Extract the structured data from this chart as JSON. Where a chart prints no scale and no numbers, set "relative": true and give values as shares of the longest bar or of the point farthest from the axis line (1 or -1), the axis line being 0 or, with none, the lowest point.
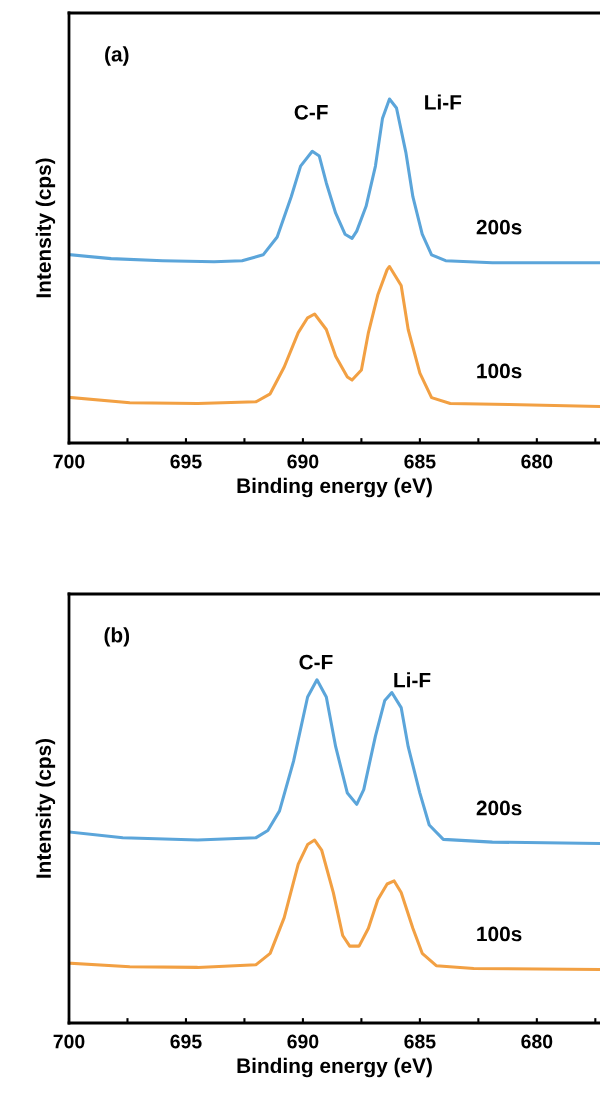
{
  "chart_data": [
    {
      "type": "line",
      "relative": true,
      "xlabel": "Binding energy (eV)",
      "ylabel": "Intensity (cps)",
      "xlim": [
        700,
        677.3
      ],
      "xticks": [
        700,
        {
          "value": 697.5,
          "label": null
        },
        695,
        {
          "value": 692.5,
          "label": null
        },
        690,
        {
          "value": 687.5,
          "label": null
        },
        685,
        {
          "value": 682.5,
          "label": null
        },
        680,
        {
          "value": 677.5,
          "label": null
        }
      ],
      "tick_labels": "x",
      "grid": false,
      "legend": false,
      "marker": "none",
      "line_style": "solid",
      "annotations": [
        "(a)",
        "C-F",
        "Li-F"
      ],
      "series": [
        {
          "name": "200s",
          "color": "#5ba5da",
          "x": [
            699.9,
            698.2,
            696.0,
            693.8,
            692.6,
            691.7,
            691.1,
            690.5,
            690.1,
            689.6,
            689.3,
            689.0,
            688.6,
            688.2,
            687.9,
            687.7,
            687.3,
            686.9,
            686.6,
            686.3,
            686.0,
            685.6,
            685.3,
            684.9,
            684.5,
            683.9,
            681.9,
            679.7,
            677.3
          ],
          "values": [
            0.547,
            0.536,
            0.53,
            0.527,
            0.53,
            0.547,
            0.599,
            0.716,
            0.805,
            0.848,
            0.834,
            0.756,
            0.668,
            0.607,
            0.595,
            0.616,
            0.688,
            0.805,
            0.943,
            1.0,
            0.974,
            0.845,
            0.716,
            0.607,
            0.547,
            0.53,
            0.524,
            0.524,
            0.524
          ]
        },
        {
          "name": "100s",
          "color": "#f2a043",
          "x": [
            699.9,
            697.4,
            694.5,
            692.0,
            691.4,
            690.8,
            690.2,
            689.8,
            689.5,
            689.0,
            688.6,
            688.1,
            687.9,
            687.5,
            687.2,
            686.8,
            686.4,
            686.3,
            685.8,
            685.5,
            685.0,
            684.5,
            683.7,
            681.2,
            677.3
          ],
          "values": [
            0.132,
            0.117,
            0.115,
            0.12,
            0.143,
            0.221,
            0.321,
            0.364,
            0.375,
            0.33,
            0.252,
            0.192,
            0.183,
            0.212,
            0.321,
            0.43,
            0.504,
            0.513,
            0.458,
            0.33,
            0.203,
            0.132,
            0.115,
            0.112,
            0.106
          ]
        }
      ]
    },
    {
      "type": "line",
      "relative": true,
      "xlabel": "Binding energy (eV)",
      "ylabel": "Intensity (cps)",
      "xlim": [
        700,
        677.3
      ],
      "xticks": [
        700,
        {
          "value": 697.5,
          "label": null
        },
        695,
        {
          "value": 692.5,
          "label": null
        },
        690,
        {
          "value": 687.5,
          "label": null
        },
        685,
        {
          "value": 682.5,
          "label": null
        },
        680,
        {
          "value": 677.5,
          "label": null
        }
      ],
      "tick_labels": "x",
      "grid": false,
      "legend": false,
      "marker": "none",
      "line_style": "solid",
      "annotations": [
        "(b)",
        "C-F",
        "Li-F"
      ],
      "series": [
        {
          "name": "200s",
          "color": "#5ba5da",
          "x": [
            699.9,
            697.7,
            694.5,
            692.0,
            691.5,
            691.0,
            690.4,
            689.8,
            689.4,
            689.0,
            688.6,
            688.1,
            687.7,
            687.4,
            686.9,
            686.5,
            686.2,
            685.8,
            685.5,
            685.0,
            684.6,
            684.0,
            681.9,
            677.3
          ],
          "values": [
            0.556,
            0.54,
            0.533,
            0.54,
            0.561,
            0.618,
            0.763,
            0.95,
            1.0,
            0.95,
            0.805,
            0.67,
            0.637,
            0.68,
            0.836,
            0.94,
            0.963,
            0.919,
            0.805,
            0.67,
            0.577,
            0.535,
            0.527,
            0.523
          ]
        },
        {
          "name": "100s",
          "color": "#f2a043",
          "x": [
            699.9,
            697.4,
            694.5,
            692.0,
            691.4,
            690.8,
            690.2,
            689.8,
            689.5,
            689.2,
            688.7,
            688.3,
            688.0,
            687.6,
            687.2,
            686.8,
            686.4,
            686.1,
            685.8,
            685.3,
            684.9,
            684.3,
            682.7,
            677.3
          ],
          "values": [
            0.174,
            0.164,
            0.162,
            0.17,
            0.203,
            0.307,
            0.463,
            0.52,
            0.533,
            0.504,
            0.38,
            0.255,
            0.224,
            0.224,
            0.276,
            0.359,
            0.405,
            0.414,
            0.38,
            0.276,
            0.203,
            0.167,
            0.159,
            0.156
          ]
        }
      ]
    }
  ]
}
